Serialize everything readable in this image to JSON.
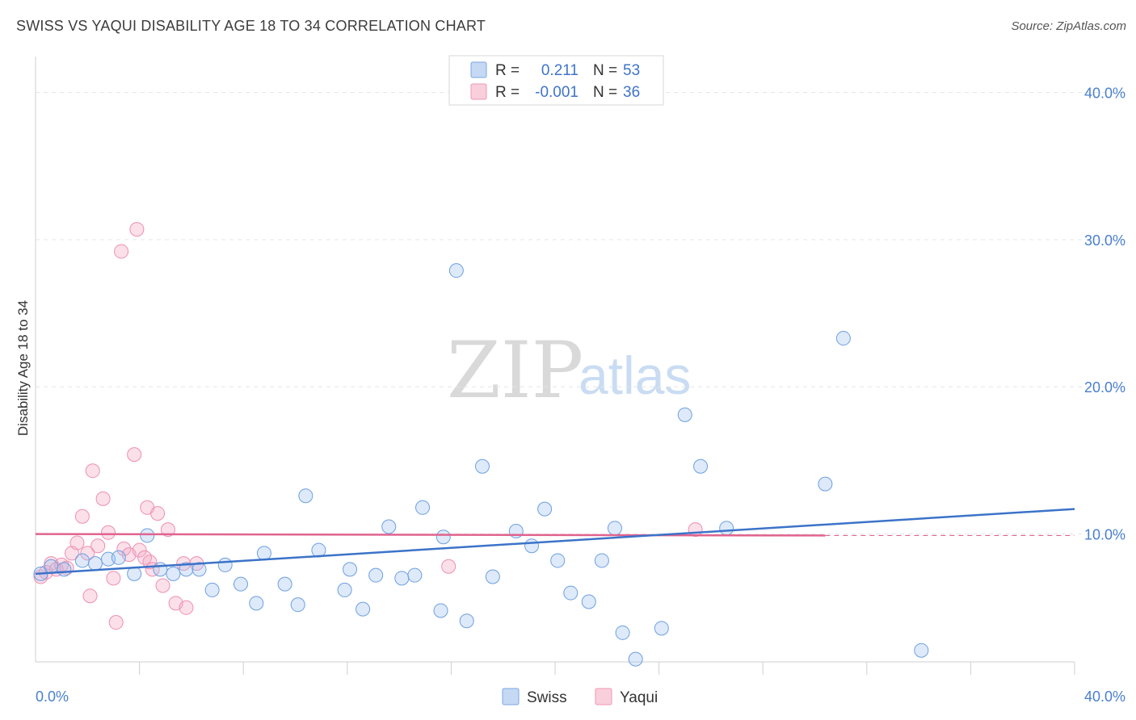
{
  "header": {
    "title": "SWISS VS YAQUI DISABILITY AGE 18 TO 34 CORRELATION CHART",
    "source": "Source: ZipAtlas.com"
  },
  "watermark": {
    "zip": "ZIP",
    "atlas": "atlas"
  },
  "legend": {
    "swiss": {
      "r_label": "R =",
      "r_value": "0.211",
      "n_label": "N =",
      "n_value": "53"
    },
    "yaqui": {
      "r_label": "R =",
      "r_value": "-0.001",
      "n_label": "N =",
      "n_value": "36"
    }
  },
  "chart_data": {
    "type": "scatter",
    "title": "SWISS VS YAQUI DISABILITY AGE 18 TO 34 CORRELATION CHART",
    "xlabel": "",
    "ylabel": "Disability Age 18 to 34",
    "xlim": [
      0,
      40
    ],
    "ylim": [
      0,
      42
    ],
    "x_tick_labels": {
      "left": "0.0%",
      "right": "40.0%"
    },
    "y_ticks": [
      10,
      20,
      30,
      40
    ],
    "y_tick_labels": [
      "10.0%",
      "20.0%",
      "30.0%",
      "40.0%"
    ],
    "colors": {
      "swiss": "#6d9fe0",
      "swiss_line": "#3b73c8",
      "yaqui": "#ee8fb0",
      "yaqui_line": "#e0648f"
    },
    "series": [
      {
        "name": "Swiss",
        "trend": {
          "x0": 0,
          "y0": 7.3,
          "x1": 40,
          "y1": 11.7
        },
        "points": [
          {
            "x": 0.2,
            "y": 7.3
          },
          {
            "x": 0.6,
            "y": 7.8
          },
          {
            "x": 1.1,
            "y": 7.6
          },
          {
            "x": 1.8,
            "y": 8.2
          },
          {
            "x": 2.3,
            "y": 8.0
          },
          {
            "x": 2.8,
            "y": 8.3
          },
          {
            "x": 3.2,
            "y": 8.4
          },
          {
            "x": 3.8,
            "y": 7.3
          },
          {
            "x": 4.3,
            "y": 9.9
          },
          {
            "x": 4.8,
            "y": 7.6
          },
          {
            "x": 5.3,
            "y": 7.3
          },
          {
            "x": 5.8,
            "y": 7.6
          },
          {
            "x": 6.3,
            "y": 7.6
          },
          {
            "x": 6.8,
            "y": 6.2
          },
          {
            "x": 7.3,
            "y": 7.9
          },
          {
            "x": 7.9,
            "y": 6.6
          },
          {
            "x": 8.8,
            "y": 8.7
          },
          {
            "x": 8.5,
            "y": 5.3
          },
          {
            "x": 9.6,
            "y": 6.6
          },
          {
            "x": 10.1,
            "y": 5.2
          },
          {
            "x": 10.4,
            "y": 12.6
          },
          {
            "x": 11.9,
            "y": 6.2
          },
          {
            "x": 10.9,
            "y": 8.9
          },
          {
            "x": 12.1,
            "y": 7.6
          },
          {
            "x": 12.6,
            "y": 4.9
          },
          {
            "x": 13.1,
            "y": 7.2
          },
          {
            "x": 13.6,
            "y": 10.5
          },
          {
            "x": 14.1,
            "y": 7.0
          },
          {
            "x": 14.6,
            "y": 7.2
          },
          {
            "x": 14.9,
            "y": 11.8
          },
          {
            "x": 15.6,
            "y": 4.8
          },
          {
            "x": 15.7,
            "y": 9.8
          },
          {
            "x": 16.2,
            "y": 27.9
          },
          {
            "x": 16.6,
            "y": 4.1
          },
          {
            "x": 17.2,
            "y": 14.6
          },
          {
            "x": 17.6,
            "y": 7.1
          },
          {
            "x": 18.5,
            "y": 10.2
          },
          {
            "x": 19.1,
            "y": 9.2
          },
          {
            "x": 19.6,
            "y": 11.7
          },
          {
            "x": 20.1,
            "y": 8.2
          },
          {
            "x": 20.6,
            "y": 6.0
          },
          {
            "x": 21.3,
            "y": 5.4
          },
          {
            "x": 21.8,
            "y": 8.2
          },
          {
            "x": 22.3,
            "y": 10.4
          },
          {
            "x": 22.6,
            "y": 3.3
          },
          {
            "x": 23.1,
            "y": 1.5
          },
          {
            "x": 24.1,
            "y": 3.6
          },
          {
            "x": 25.0,
            "y": 18.1
          },
          {
            "x": 25.6,
            "y": 14.6
          },
          {
            "x": 26.6,
            "y": 10.4
          },
          {
            "x": 30.4,
            "y": 13.4
          },
          {
            "x": 31.1,
            "y": 23.3
          },
          {
            "x": 34.1,
            "y": 2.1
          }
        ]
      },
      {
        "name": "Yaqui",
        "trend": {
          "x0": 0,
          "y0": 10.0,
          "x1": 30.4,
          "y1": 9.9,
          "dash_to": 40
        },
        "points": [
          {
            "x": 0.2,
            "y": 7.1
          },
          {
            "x": 0.4,
            "y": 7.4
          },
          {
            "x": 0.6,
            "y": 8.0
          },
          {
            "x": 0.8,
            "y": 7.6
          },
          {
            "x": 1.0,
            "y": 7.9
          },
          {
            "x": 1.2,
            "y": 7.7
          },
          {
            "x": 1.4,
            "y": 8.7
          },
          {
            "x": 1.6,
            "y": 9.4
          },
          {
            "x": 1.8,
            "y": 11.2
          },
          {
            "x": 2.0,
            "y": 8.7
          },
          {
            "x": 2.1,
            "y": 5.8
          },
          {
            "x": 2.2,
            "y": 14.3
          },
          {
            "x": 2.4,
            "y": 9.2
          },
          {
            "x": 2.6,
            "y": 12.4
          },
          {
            "x": 2.8,
            "y": 10.1
          },
          {
            "x": 3.0,
            "y": 7.0
          },
          {
            "x": 3.1,
            "y": 4.0
          },
          {
            "x": 3.3,
            "y": 29.2
          },
          {
            "x": 3.4,
            "y": 9.0
          },
          {
            "x": 3.6,
            "y": 8.6
          },
          {
            "x": 3.8,
            "y": 15.4
          },
          {
            "x": 3.9,
            "y": 30.7
          },
          {
            "x": 4.0,
            "y": 8.9
          },
          {
            "x": 4.2,
            "y": 8.4
          },
          {
            "x": 4.3,
            "y": 11.8
          },
          {
            "x": 4.4,
            "y": 8.1
          },
          {
            "x": 4.5,
            "y": 7.6
          },
          {
            "x": 4.7,
            "y": 11.4
          },
          {
            "x": 4.9,
            "y": 6.5
          },
          {
            "x": 5.1,
            "y": 10.3
          },
          {
            "x": 5.4,
            "y": 5.3
          },
          {
            "x": 5.7,
            "y": 8.0
          },
          {
            "x": 5.8,
            "y": 5.0
          },
          {
            "x": 6.2,
            "y": 8.0
          },
          {
            "x": 15.9,
            "y": 7.8
          },
          {
            "x": 25.4,
            "y": 10.3
          }
        ]
      }
    ]
  }
}
